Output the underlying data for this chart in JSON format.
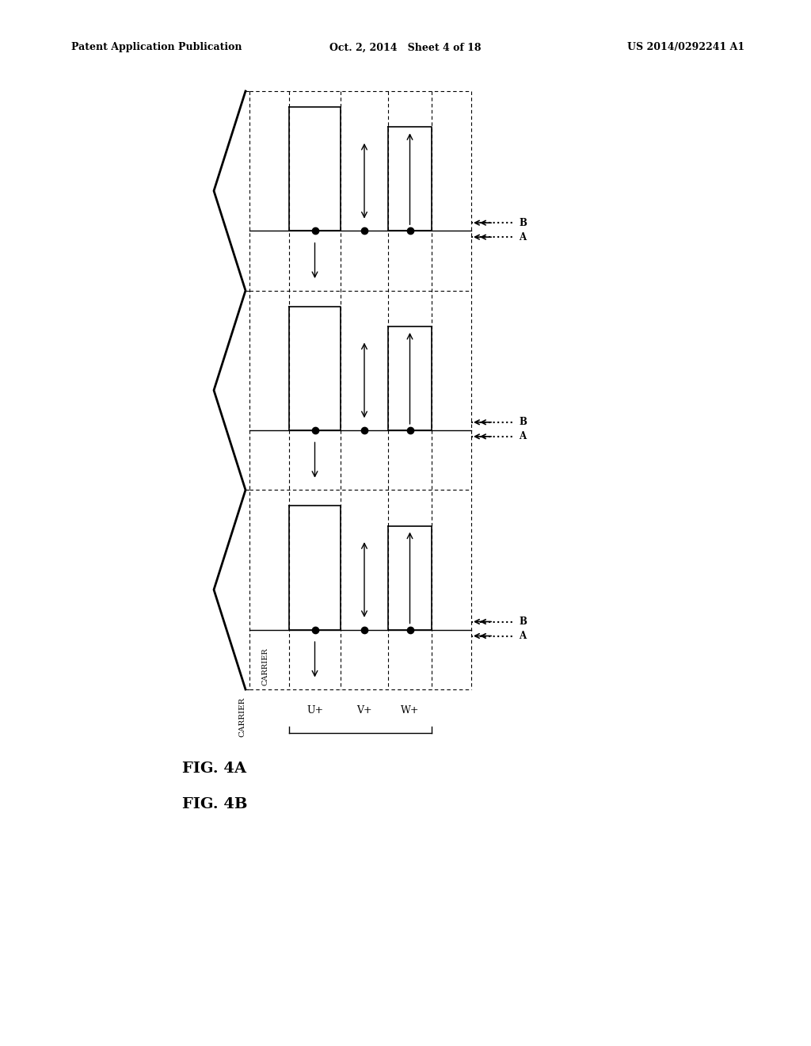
{
  "bg_color": "#ffffff",
  "header": {
    "left": "Patent Application Publication",
    "center": "Oct. 2, 2014   Sheet 4 of 18",
    "right": "US 2014/0292241 A1"
  },
  "fig4a_label": "FIG. 4A",
  "fig4b_label": "FIG. 4B",
  "carrier_label": "CARRIER",
  "section_labels": [
    "U+",
    "V+",
    "W+"
  ],
  "ab_label": "A B"
}
